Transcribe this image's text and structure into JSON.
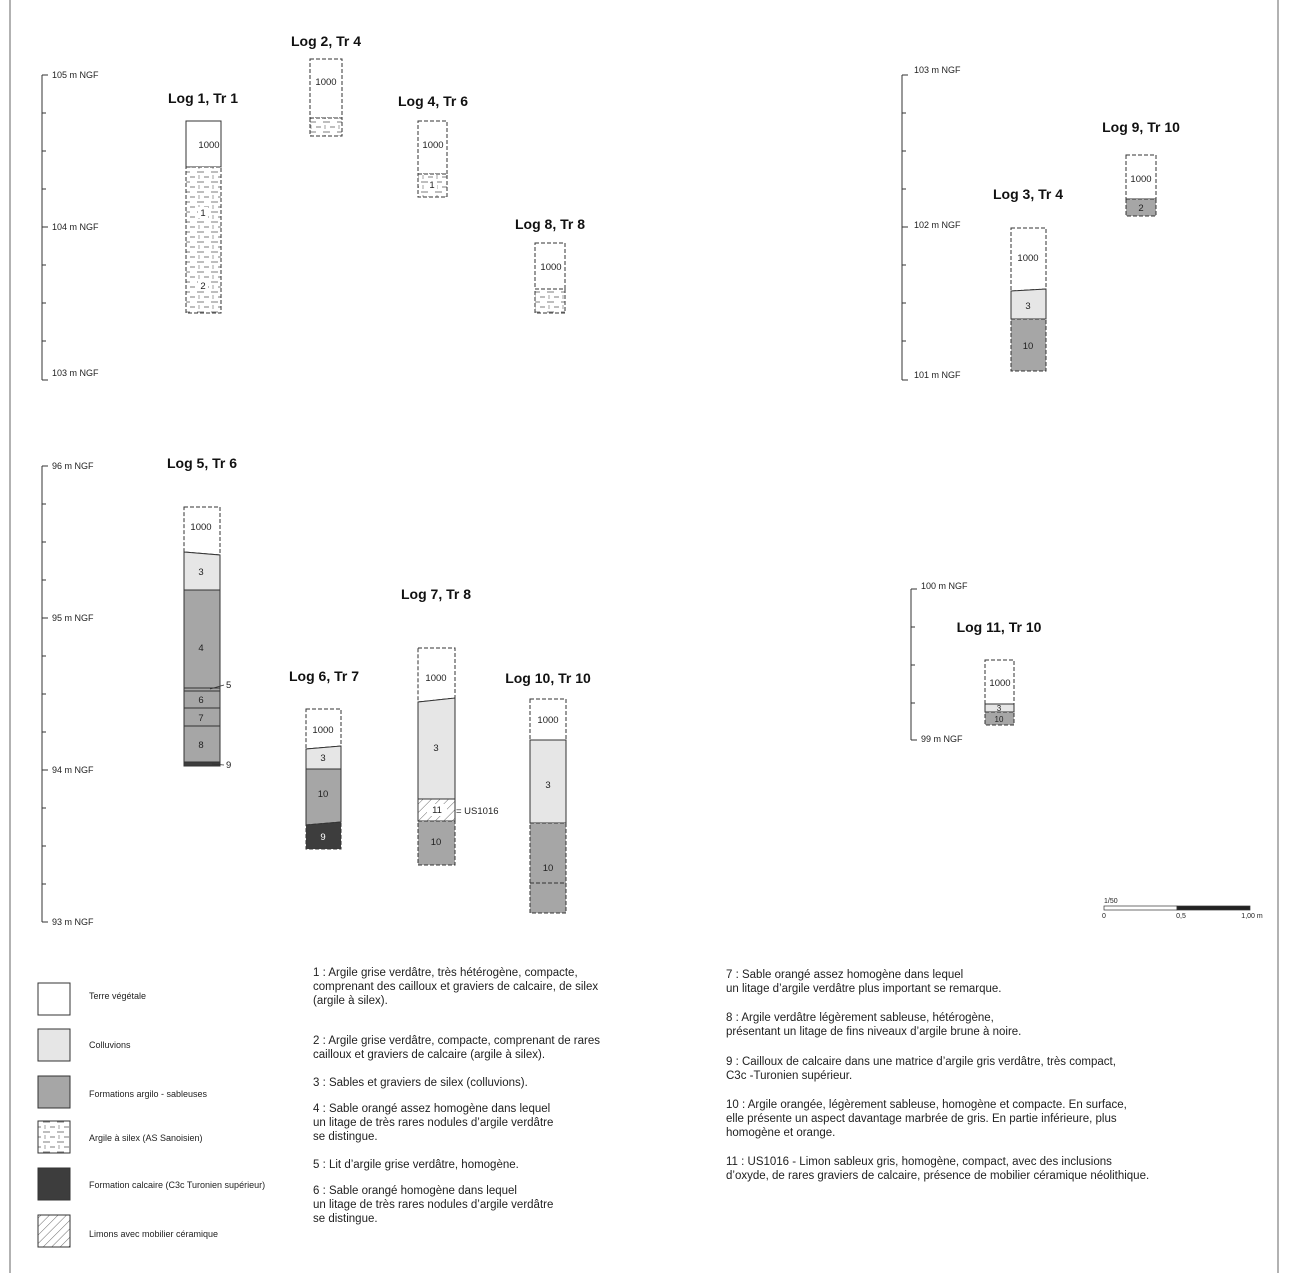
{
  "colors": {
    "terre": "#ffffff",
    "colluvions": "#e6e6e6",
    "argilo_sableuses": "#a6a6a6",
    "calcaire": "#3d3d3d",
    "line": "#333333"
  },
  "panels": [
    {
      "axis": {
        "top_label": "105 m NGF",
        "mid_label": "104 m NGF",
        "bottom_label": "103 m NGF"
      },
      "logs": [
        {
          "title": "Log 1, Tr 1",
          "units": [
            {
              "label": "1000",
              "fill": "terre"
            },
            {
              "label": "1",
              "fill": "argile_silex"
            },
            {
              "label": "2",
              "fill": "argile_silex"
            }
          ]
        },
        {
          "title": "Log 2, Tr 4",
          "units": [
            {
              "label": "1000",
              "fill": "terre"
            },
            {
              "label": "",
              "fill": "argile_silex"
            }
          ]
        },
        {
          "title": "Log 4, Tr 6",
          "units": [
            {
              "label": "1000",
              "fill": "terre"
            },
            {
              "label": "1",
              "fill": "argile_silex"
            }
          ]
        },
        {
          "title": "Log 8, Tr 8",
          "units": [
            {
              "label": "1000",
              "fill": "terre"
            },
            {
              "label": "",
              "fill": "argile_silex"
            }
          ]
        }
      ]
    },
    {
      "axis": {
        "top_label": "103 m NGF",
        "mid_label": "102 m NGF",
        "bottom_label": "101 m NGF"
      },
      "logs": [
        {
          "title": "Log 3, Tr 4",
          "units": [
            {
              "label": "1000",
              "fill": "terre"
            },
            {
              "label": "3",
              "fill": "colluvions"
            },
            {
              "label": "10",
              "fill": "argilo_sableuses"
            }
          ]
        },
        {
          "title": "Log 9, Tr 10",
          "units": [
            {
              "label": "1000",
              "fill": "terre"
            },
            {
              "label": "2",
              "fill": "argilo_sableuses"
            }
          ]
        }
      ]
    },
    {
      "axis": {
        "top_label": "96 m NGF",
        "mid_label": "95 m NGF",
        "low_label": "94 m NGF",
        "bottom_label": "93 m NGF"
      },
      "logs": [
        {
          "title": "Log 5, Tr 6",
          "units": [
            {
              "label": "1000",
              "fill": "terre"
            },
            {
              "label": "3",
              "fill": "colluvions"
            },
            {
              "label": "4",
              "fill": "argilo_sableuses"
            },
            {
              "label": "5",
              "fill": "argilo_sableuses"
            },
            {
              "label": "6",
              "fill": "argilo_sableuses"
            },
            {
              "label": "7",
              "fill": "argilo_sableuses"
            },
            {
              "label": "8",
              "fill": "argilo_sableuses"
            },
            {
              "label": "9",
              "fill": "calcaire"
            }
          ]
        },
        {
          "title": "Log 6, Tr 7",
          "units": [
            {
              "label": "1000",
              "fill": "terre"
            },
            {
              "label": "3",
              "fill": "colluvions"
            },
            {
              "label": "10",
              "fill": "argilo_sableuses"
            },
            {
              "label": "9",
              "fill": "calcaire"
            }
          ]
        },
        {
          "title": "Log 7, Tr 8",
          "units": [
            {
              "label": "1000",
              "fill": "terre"
            },
            {
              "label": "3",
              "fill": "colluvions"
            },
            {
              "label": "11",
              "fill": "limons"
            },
            {
              "label": "10",
              "fill": "argilo_sableuses"
            }
          ],
          "annotation": "= US1016"
        },
        {
          "title": "Log 10, Tr 10",
          "units": [
            {
              "label": "1000",
              "fill": "terre"
            },
            {
              "label": "3",
              "fill": "colluvions"
            },
            {
              "label": "10",
              "fill": "argilo_sableuses"
            }
          ]
        }
      ]
    },
    {
      "axis": {
        "top_label": "100 m NGF",
        "bottom_label": "99 m NGF"
      },
      "logs": [
        {
          "title": "Log 11, Tr 10",
          "units": [
            {
              "label": "1000",
              "fill": "terre"
            },
            {
              "label": "3",
              "fill": "colluvions"
            },
            {
              "label": "10",
              "fill": "argilo_sableuses"
            }
          ]
        }
      ]
    }
  ],
  "scale": {
    "title": "1/50",
    "ticks": [
      "0",
      "0,5",
      "1,00 m"
    ]
  },
  "legend": [
    {
      "label": "Terre végétale",
      "fill": "terre"
    },
    {
      "label": "Colluvions",
      "fill": "colluvions"
    },
    {
      "label": "Formations argilo - sableuses",
      "fill": "argilo_sableuses"
    },
    {
      "label": "Argile à silex (AS Sanoisien)",
      "fill": "argile_silex"
    },
    {
      "label": "Formation calcaire (C3c Turonien supérieur)",
      "fill": "calcaire"
    },
    {
      "label": "Limons avec mobilier céramique",
      "fill": "limons"
    }
  ],
  "descriptions": [
    "1 : Argile grise verdâtre, très hétérogène, compacte,\n comprenant des cailloux et graviers de calcaire, de silex\n(argile à silex).",
    "2 : Argile grise verdâtre, compacte, comprenant de rares\ncailloux et graviers de calcaire (argile à silex).",
    "3 : Sables et graviers de silex (colluvions).",
    "4 : Sable orangé assez homogène dans lequel\nun litage de très rares nodules d’argile verdâtre\nse distingue.",
    "5 : Lit d’argile grise verdâtre, homogène.",
    "6 : Sable orangé homogène dans lequel\nun litage de très rares nodules d’argile verdâtre\nse distingue.",
    "7 : Sable orangé assez homogène dans lequel\nun litage d’argile verdâtre plus important se remarque.",
    "8 : Argile verdâtre légèrement sableuse, hétérogène,\nprésentant un litage de fins niveaux d’argile brune à noire.",
    "9 : Cailloux de calcaire dans une matrice d’argile gris verdâtre, très compact,\nC3c -Turonien supérieur.",
    "10 : Argile orangée, légèrement sableuse, homogène et compacte. En surface,\nelle présente un aspect davantage marbrée de gris. En partie inférieure, plus\nhomogène et orange.",
    "11 : US1016 - Limon sableux gris, homogène, compact, avec des inclusions\nd’oxyde, de rares graviers de calcaire, présence de mobilier céramique néolithique."
  ]
}
